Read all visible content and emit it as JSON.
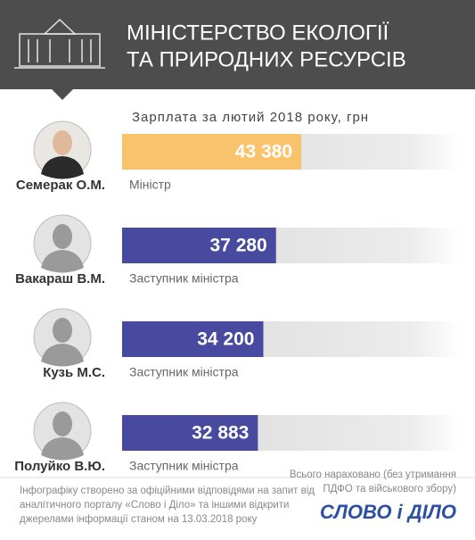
{
  "chart_data": {
    "type": "bar",
    "title": [
      "МІНІСТЕРСТВО ЕКОЛОГІЇ",
      "ТА ПРИРОДНИХ РЕСУРСІВ"
    ],
    "subtitle": "Зарплата за лютий 2018 року, грн",
    "categories": [
      "Семерак О.М.",
      "Вакараш В.М.",
      "Кузь М.С.",
      "Полуйко В.Ю."
    ],
    "roles": [
      "Міністр",
      "Заступник міністра",
      "Заступник міністра",
      "Заступник міністра"
    ],
    "values": [
      43380,
      37280,
      34200,
      32883
    ],
    "value_labels": [
      "43 380",
      "37 280",
      "34 200",
      "32 883"
    ],
    "colors": [
      "#f8c36a",
      "#474a9e",
      "#474a9e",
      "#474a9e"
    ]
  },
  "footer": {
    "note": [
      "Інфографіку створено за офіційними відповідями на запит від",
      "аналітичного  порталу «Слово і Діло» та іншими відкрити",
      "джерелами інформації станом на 13.03.2018 року"
    ],
    "total_note": [
      "Всього нараховано (без утримання",
      "ПДФО та військового збору)"
    ],
    "logo": "СЛОВО і ДІЛО"
  }
}
